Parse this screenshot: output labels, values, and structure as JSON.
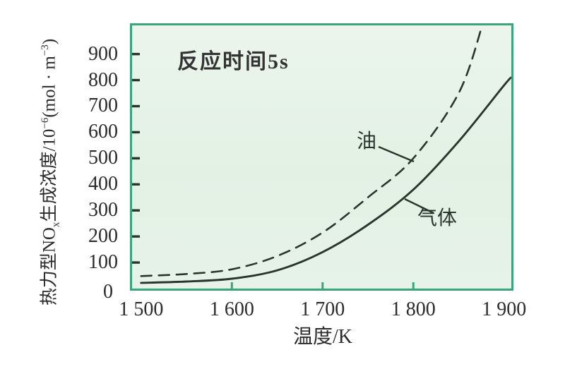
{
  "chart": {
    "annotation": "反应时间5s",
    "x_axis": {
      "label": "温度/K"
    },
    "y_axis": {
      "label_prefix": "热力型NO",
      "label_sub": "x",
      "label_mid": "生成浓度/10",
      "label_sup1": "−6",
      "label_unit": "(mol · m",
      "label_sup2": "−3",
      "label_close": ")"
    },
    "series_labels": {
      "oil": "油",
      "gas": "气体"
    }
  },
  "chart_data": {
    "type": "line",
    "title": "",
    "annotation": "反应时间5s",
    "xlabel": "温度/K",
    "ylabel": "热力型NOx生成浓度/10−6(mol · m−3)",
    "xlim": [
      1490,
      1908
    ],
    "ylim": [
      0,
      1010
    ],
    "grid": false,
    "legend_position": "on-curve labels with leader lines",
    "x_ticks": {
      "values": [
        1500,
        1600,
        1700,
        1800,
        1900
      ],
      "labels": [
        "1 500",
        "1 600",
        "1 700",
        "1 800",
        "1 900"
      ],
      "mark_values": [
        1600,
        1700,
        1800
      ]
    },
    "y_ticks": {
      "values": [
        0,
        100,
        200,
        300,
        400,
        500,
        600,
        700,
        800,
        900
      ],
      "labels": [
        "0",
        "100",
        "200",
        "300",
        "400",
        "500",
        "600",
        "700",
        "800",
        "900"
      ],
      "mark_values": [
        100,
        200,
        300,
        400,
        500,
        600,
        700,
        800,
        900
      ]
    },
    "series": [
      {
        "name": "气体",
        "line_style": "solid",
        "x": [
          1500,
          1550,
          1600,
          1650,
          1700,
          1750,
          1800,
          1850,
          1900,
          1908
        ],
        "y": [
          22,
          27,
          38,
          70,
          140,
          245,
          380,
          565,
          780,
          810
        ]
      },
      {
        "name": "油",
        "line_style": "dashed",
        "x": [
          1500,
          1550,
          1600,
          1650,
          1700,
          1750,
          1800,
          1850,
          1876
        ],
        "y": [
          48,
          56,
          74,
          125,
          215,
          350,
          500,
          750,
          1010
        ]
      }
    ],
    "colors": {
      "plot_bg": "#e5f2e6",
      "plot_border": "#3aa47a",
      "curve": "#2a352e",
      "text": "#2b2b2b",
      "x_tick_mark": "#3aa47a",
      "y_tick_mark": "#2a352e"
    },
    "leader_lines": {
      "oil": {
        "x1": 349,
        "y1": 172,
        "x2": 399,
        "y2": 193
      },
      "gas": {
        "x1": 386,
        "y1": 246,
        "x2": 427,
        "y2": 266
      }
    }
  }
}
